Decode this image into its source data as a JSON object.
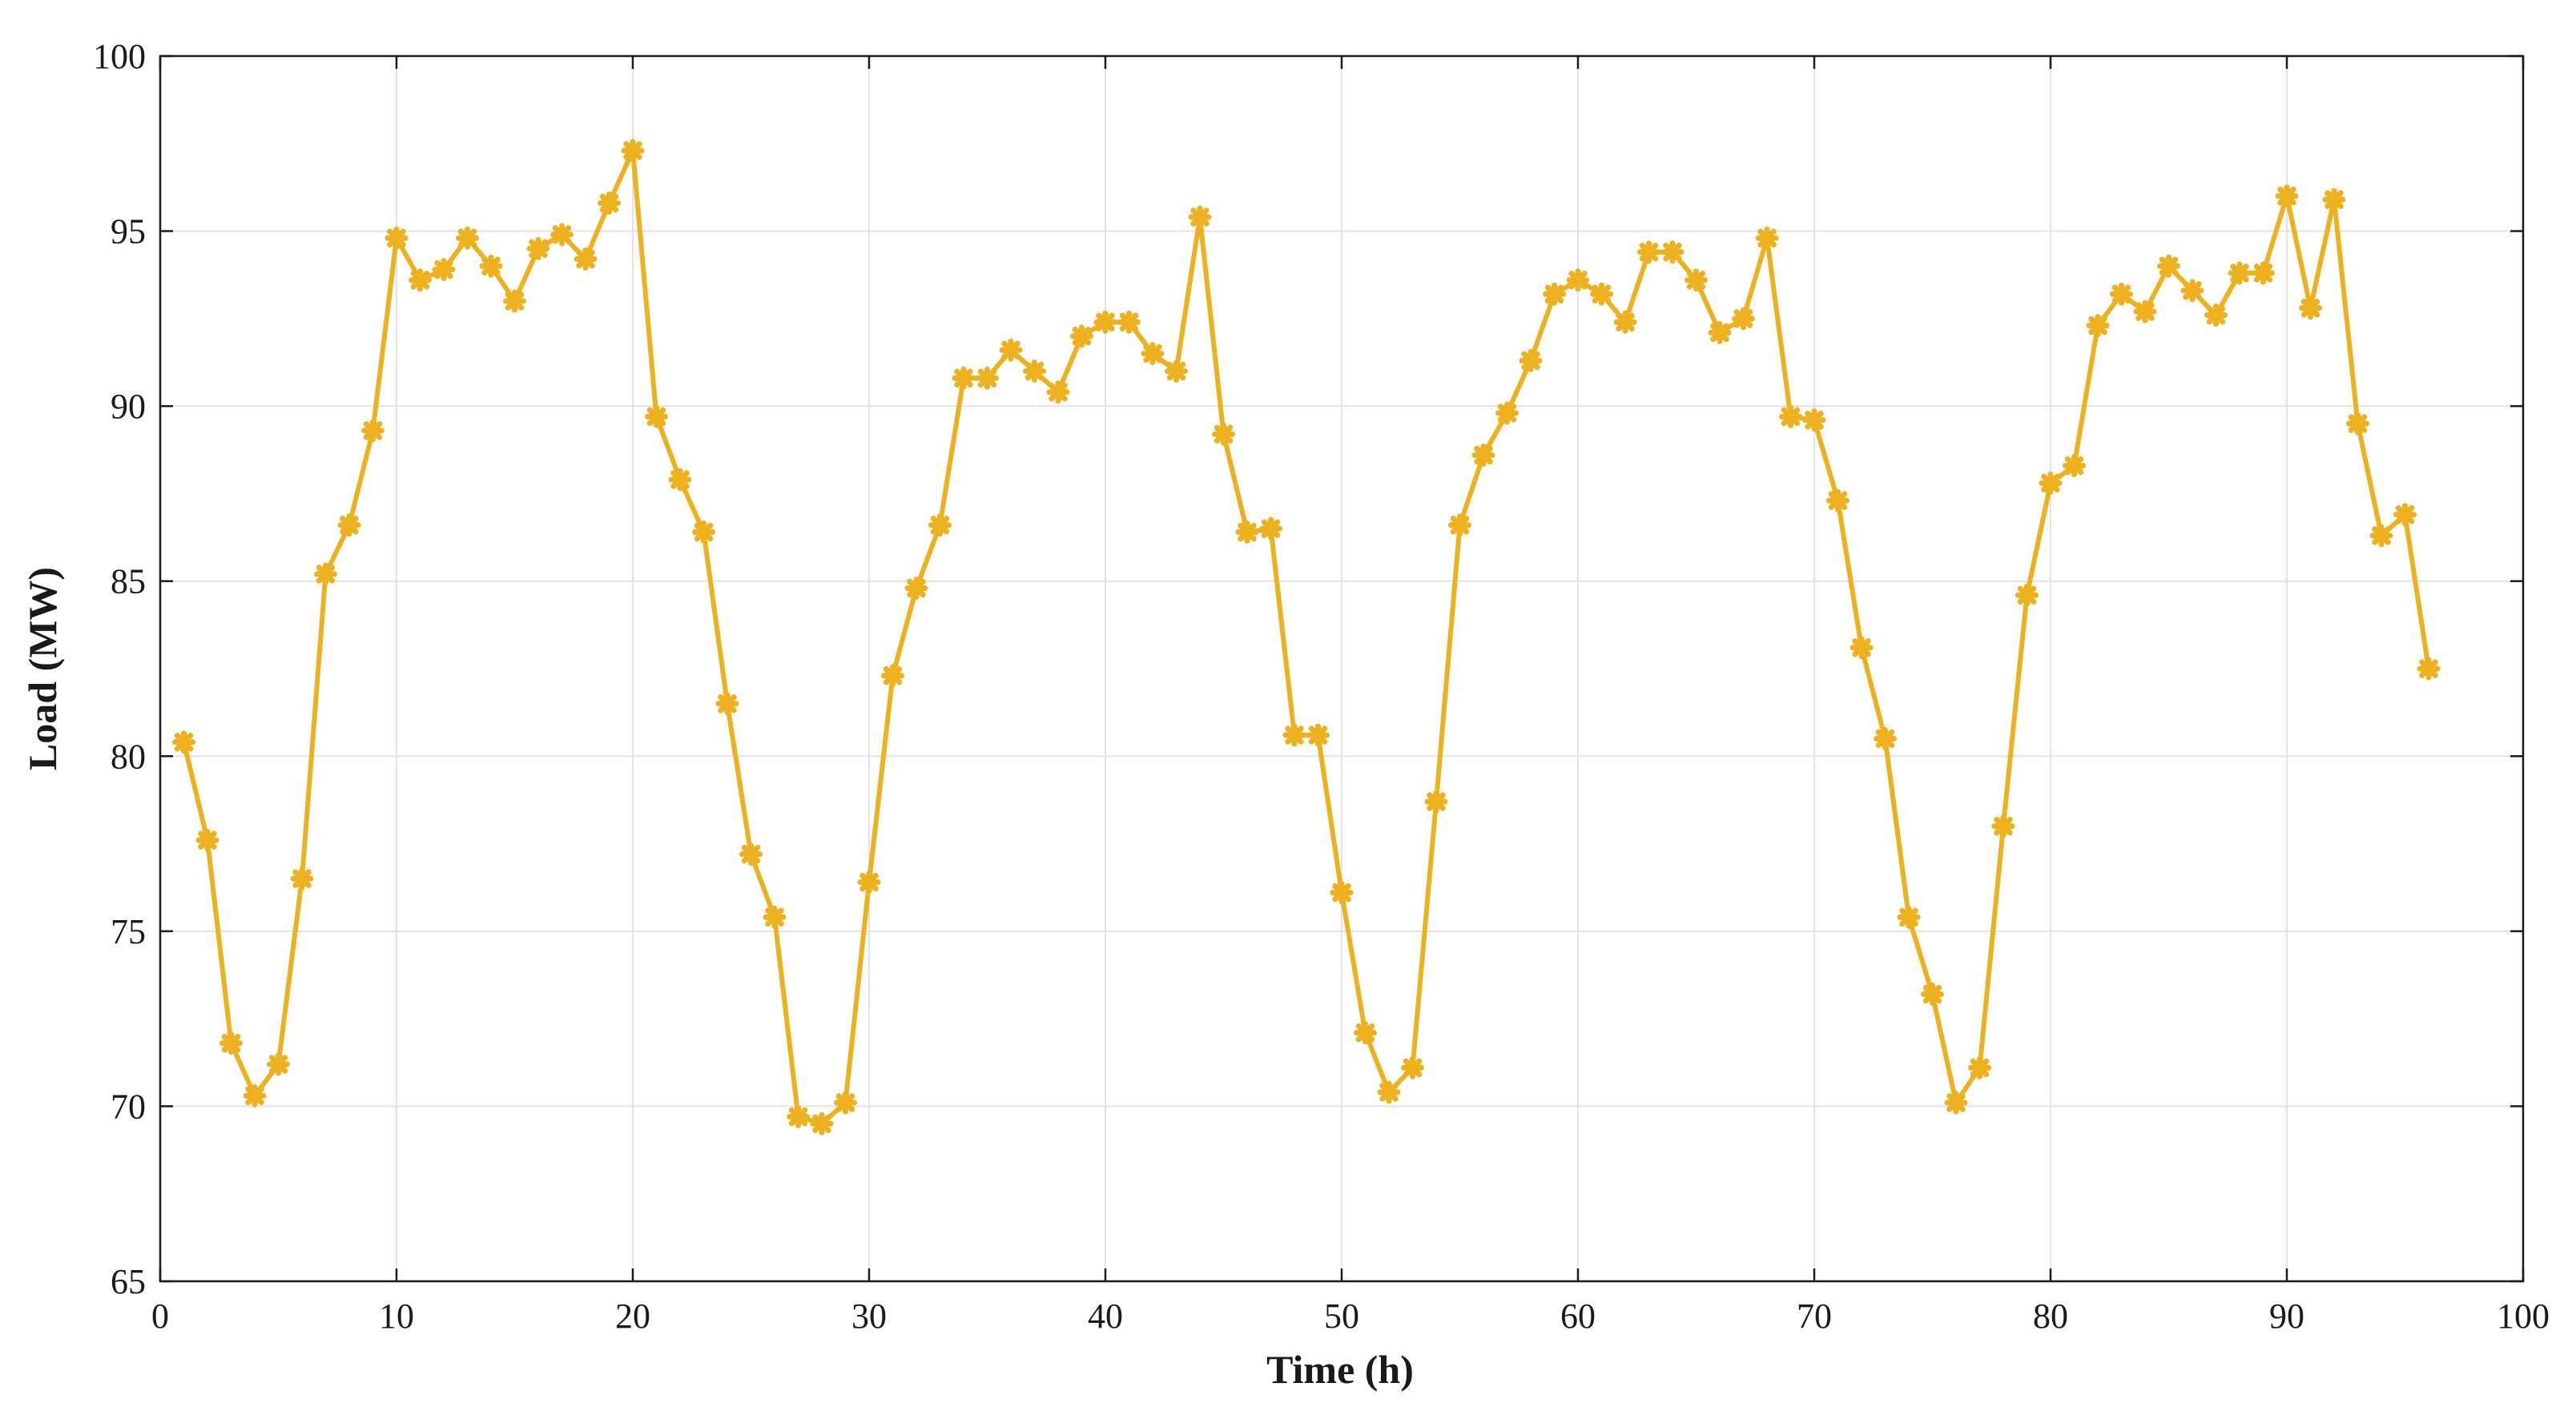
{
  "chart_data": {
    "type": "line",
    "title": "",
    "xlabel": "Time (h)",
    "ylabel": "Load (MW)",
    "xlim": [
      0,
      100
    ],
    "ylim": [
      65,
      100
    ],
    "xticks": [
      "0",
      "10",
      "20",
      "30",
      "40",
      "50",
      "60",
      "70",
      "80",
      "90",
      "100"
    ],
    "yticks": [
      "65",
      "70",
      "75",
      "80",
      "85",
      "90",
      "95",
      "100"
    ],
    "grid": true,
    "line_color": "#EDB120",
    "marker": "asterisk",
    "series": [
      {
        "x": [
          1,
          2,
          3,
          4,
          5,
          6,
          7,
          8,
          9,
          10,
          11,
          12,
          13,
          14,
          15,
          16,
          17,
          18,
          19,
          20,
          21,
          22,
          23,
          24,
          25,
          26,
          27,
          28,
          29,
          30,
          31,
          32,
          33,
          34,
          35,
          36,
          37,
          38,
          39,
          40,
          41,
          42,
          43,
          44,
          45,
          46,
          47,
          48,
          49,
          50,
          51,
          52,
          53,
          54,
          55,
          56,
          57,
          58,
          59,
          60,
          61,
          62,
          63,
          64,
          65,
          66,
          67,
          68,
          69,
          70,
          71,
          72,
          73,
          74,
          75,
          76,
          77,
          78,
          79,
          80,
          81,
          82,
          83,
          84,
          85,
          86,
          87,
          88,
          89,
          90,
          91,
          92,
          93,
          94,
          95,
          96
        ],
        "values": [
          80.4,
          77.6,
          71.8,
          70.3,
          71.2,
          76.5,
          85.2,
          86.6,
          89.3,
          94.8,
          93.6,
          93.9,
          94.8,
          94.0,
          93.0,
          94.5,
          94.9,
          94.2,
          95.8,
          97.3,
          89.7,
          87.9,
          86.4,
          81.5,
          77.2,
          75.4,
          69.7,
          69.5,
          70.1,
          76.4,
          82.3,
          84.8,
          86.6,
          90.8,
          90.8,
          91.6,
          91.0,
          90.4,
          92.0,
          92.4,
          92.4,
          91.5,
          91.0,
          95.4,
          89.2,
          86.4,
          86.5,
          80.6,
          80.6,
          76.1,
          72.1,
          70.4,
          71.1,
          78.7,
          86.6,
          88.6,
          89.8,
          91.3,
          93.2,
          93.6,
          93.2,
          92.4,
          94.4,
          94.4,
          93.6,
          92.1,
          92.5,
          94.8,
          89.7,
          89.6,
          87.3,
          83.1,
          80.5,
          75.4,
          73.2,
          70.1,
          71.1,
          78.0,
          84.6,
          87.8,
          88.3,
          92.3,
          93.2,
          92.7,
          94.0,
          93.3,
          92.6,
          93.8,
          93.8,
          96.0,
          92.8,
          95.9,
          89.5,
          86.3,
          86.9,
          82.5
        ]
      }
    ]
  }
}
